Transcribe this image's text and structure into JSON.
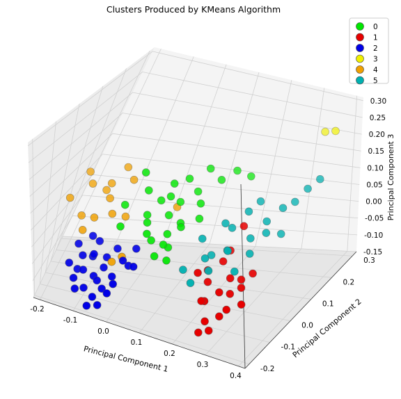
{
  "chart_data": {
    "type": "scatter",
    "projection": "3d",
    "title": "Clusters Produced by KMeans Algorithm",
    "xlabel": "Principal Component 1",
    "ylabel": "Principal Component 2",
    "zlabel": "Principal Component 3",
    "xticks": [
      "-0.2",
      "-0.1",
      "0.0",
      "0.1",
      "0.2",
      "0.3",
      "0.4"
    ],
    "yticks": [
      "-0.2",
      "-0.1",
      "0.0",
      "0.1",
      "0.2",
      "0.3"
    ],
    "zticks": [
      "-0.15",
      "-0.10",
      "-0.05",
      "0.00",
      "0.05",
      "0.10",
      "0.15",
      "0.20",
      "0.25",
      "0.30"
    ],
    "xlim": [
      -0.22,
      0.42
    ],
    "ylim": [
      -0.22,
      0.32
    ],
    "zlim": [
      -0.15,
      0.31
    ],
    "grid": true,
    "legend_position": "top-right",
    "series": [
      {
        "name": "0",
        "color": "#00e600",
        "points": [
          [
            -0.02,
            0.05,
            0.14
          ],
          [
            0.0,
            0.04,
            0.1
          ],
          [
            -0.05,
            0.02,
            0.06
          ],
          [
            0.03,
            0.06,
            0.07
          ],
          [
            0.05,
            0.08,
            0.11
          ],
          [
            0.08,
            0.1,
            0.12
          ],
          [
            0.02,
            0.01,
            0.03
          ],
          [
            0.06,
            0.05,
            0.04
          ],
          [
            0.1,
            0.12,
            0.08
          ],
          [
            0.07,
            0.03,
            0.0
          ],
          [
            0.09,
            0.06,
            0.02
          ],
          [
            0.04,
            0.0,
            -0.01
          ],
          [
            0.08,
            0.02,
            -0.03
          ],
          [
            0.06,
            -0.02,
            -0.04
          ],
          [
            0.12,
            0.1,
            0.06
          ],
          [
            0.1,
            0.04,
            0.02
          ],
          [
            0.05,
            0.07,
            0.08
          ],
          [
            -0.04,
            -0.02,
            0.02
          ],
          [
            0.03,
            -0.01,
            0.01
          ],
          [
            0.01,
            0.03,
            0.04
          ],
          [
            0.11,
            0.15,
            0.13
          ],
          [
            0.14,
            0.16,
            0.1
          ],
          [
            0.07,
            0.09,
            0.06
          ],
          [
            0.16,
            0.2,
            0.11
          ],
          [
            0.19,
            0.22,
            0.09
          ],
          [
            0.09,
            -0.01,
            -0.05
          ],
          [
            0.07,
            0.01,
            -0.02
          ],
          [
            0.13,
            0.08,
            0.03
          ]
        ]
      },
      {
        "name": "1",
        "color": "#e60000",
        "points": [
          [
            0.22,
            0.04,
            -0.05
          ],
          [
            0.25,
            0.02,
            -0.08
          ],
          [
            0.21,
            -0.04,
            -0.12
          ],
          [
            0.26,
            -0.06,
            -0.14
          ],
          [
            0.24,
            -0.02,
            -0.1
          ],
          [
            0.28,
            0.02,
            -0.1
          ],
          [
            0.23,
            -0.08,
            -0.15
          ],
          [
            0.27,
            -0.04,
            -0.13
          ],
          [
            0.2,
            0.0,
            -0.09
          ],
          [
            0.29,
            0.06,
            -0.08
          ],
          [
            0.18,
            -0.02,
            -0.06
          ],
          [
            0.25,
            -0.1,
            -0.16
          ],
          [
            0.22,
            0.08,
            -0.04
          ],
          [
            0.24,
            0.1,
            0.02
          ],
          [
            0.3,
            -0.02,
            -0.12
          ],
          [
            0.21,
            -0.06,
            -0.11
          ],
          [
            0.26,
            0.0,
            -0.11
          ],
          [
            0.19,
            0.02,
            -0.07
          ],
          [
            0.23,
            -0.12,
            -0.16
          ],
          [
            0.27,
            0.04,
            -0.09
          ]
        ]
      },
      {
        "name": "2",
        "color": "#0000e6",
        "points": [
          [
            -0.08,
            -0.08,
            -0.1
          ],
          [
            -0.12,
            -0.06,
            -0.06
          ],
          [
            -0.1,
            -0.1,
            -0.13
          ],
          [
            -0.06,
            -0.06,
            -0.08
          ],
          [
            -0.14,
            -0.04,
            -0.04
          ],
          [
            -0.05,
            -0.1,
            -0.12
          ],
          [
            -0.09,
            -0.02,
            -0.03
          ],
          [
            -0.11,
            -0.08,
            -0.09
          ],
          [
            -0.03,
            -0.08,
            -0.09
          ],
          [
            -0.07,
            -0.12,
            -0.14
          ],
          [
            -0.13,
            -0.1,
            -0.11
          ],
          [
            -0.01,
            -0.06,
            -0.05
          ],
          [
            -0.06,
            -0.04,
            -0.06
          ],
          [
            -0.1,
            -0.03,
            -0.07
          ],
          [
            -0.04,
            -0.02,
            -0.04
          ],
          [
            -0.08,
            -0.14,
            -0.16
          ],
          [
            -0.02,
            -0.1,
            -0.1
          ],
          [
            -0.15,
            -0.08,
            -0.08
          ],
          [
            -0.09,
            -0.06,
            -0.05
          ],
          [
            -0.12,
            -0.12,
            -0.13
          ],
          [
            0.0,
            -0.04,
            -0.07
          ],
          [
            -0.07,
            -0.08,
            -0.11
          ],
          [
            -0.05,
            -0.14,
            -0.15
          ],
          [
            -0.11,
            -0.02,
            -0.02
          ],
          [
            0.01,
            -0.02,
            -0.03
          ],
          [
            -0.03,
            -0.12,
            -0.12
          ],
          [
            -0.13,
            -0.06,
            -0.1
          ],
          [
            0.02,
            -0.06,
            -0.06
          ]
        ]
      },
      {
        "name": "3",
        "color": "#f0f000",
        "points": [
          [
            0.37,
            0.28,
            0.22
          ],
          [
            0.33,
            0.3,
            0.2
          ]
        ]
      },
      {
        "name": "4",
        "color": "#f0a000",
        "points": [
          [
            -0.2,
            0.02,
            0.05
          ],
          [
            -0.16,
            0.06,
            0.08
          ],
          [
            -0.12,
            0.0,
            0.02
          ],
          [
            -0.1,
            0.04,
            0.06
          ],
          [
            -0.14,
            -0.02,
            -0.01
          ],
          [
            -0.18,
            0.08,
            0.1
          ],
          [
            -0.08,
            0.02,
            0.03
          ],
          [
            -0.12,
            0.06,
            0.07
          ],
          [
            -0.06,
            0.08,
            0.1
          ],
          [
            -0.04,
            -0.06,
            -0.06
          ],
          [
            -0.16,
            0.02,
            0.01
          ],
          [
            -0.09,
            0.1,
            0.12
          ],
          [
            -0.05,
            0.04,
            0.02
          ],
          [
            -0.02,
            -0.04,
            -0.05
          ],
          [
            -0.11,
            0.06,
            0.09
          ],
          [
            0.06,
            0.1,
            0.04
          ]
        ]
      },
      {
        "name": "5",
        "color": "#00b0b0",
        "points": [
          [
            0.16,
            0.04,
            0.0
          ],
          [
            0.2,
            0.08,
            0.03
          ],
          [
            0.24,
            0.12,
            0.05
          ],
          [
            0.18,
            0.02,
            -0.04
          ],
          [
            0.22,
            0.06,
            -0.03
          ],
          [
            0.26,
            0.1,
            -0.01
          ],
          [
            0.14,
            -0.02,
            -0.06
          ],
          [
            0.28,
            0.14,
            0.02
          ],
          [
            0.25,
            0.16,
            0.06
          ],
          [
            0.3,
            0.18,
            0.04
          ],
          [
            0.2,
            0.0,
            -0.06
          ],
          [
            0.32,
            0.2,
            0.05
          ],
          [
            0.34,
            0.22,
            0.08
          ],
          [
            0.18,
            0.06,
            -0.05
          ],
          [
            0.23,
            0.04,
            -0.02
          ],
          [
            0.36,
            0.24,
            0.1
          ],
          [
            0.27,
            0.08,
            -0.04
          ],
          [
            0.29,
            0.12,
            0.0
          ],
          [
            0.21,
            0.1,
            0.01
          ],
          [
            0.31,
            0.16,
            -0.02
          ],
          [
            0.17,
            -0.04,
            -0.08
          ],
          [
            0.26,
            0.02,
            -0.06
          ]
        ]
      }
    ]
  }
}
